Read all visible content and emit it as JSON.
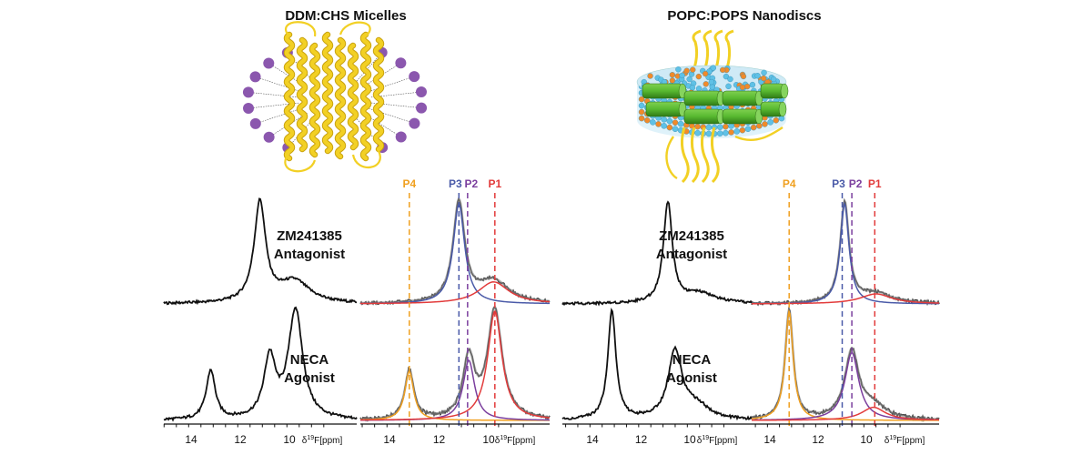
{
  "panels": [
    {
      "title": "DDM:CHS Micelles",
      "conditions": [
        {
          "line1": "ZM241385",
          "line2": "Antagonist"
        },
        {
          "line1": "NECA",
          "line2": "Agonist"
        }
      ],
      "axis": {
        "ticks": [
          "14",
          "12",
          "10"
        ],
        "label_prefix": "δ",
        "label_sup": "19",
        "label_suffix": "F[ppm]"
      },
      "peaks": [
        {
          "name": "P4",
          "ppm": 13.2,
          "color": "#f0a020"
        },
        {
          "name": "P3",
          "ppm": 11.2,
          "color": "#4a5aa8"
        },
        {
          "name": "P2",
          "ppm": 10.85,
          "color": "#7b3f9e"
        },
        {
          "name": "P1",
          "ppm": 9.75,
          "color": "#e23b3b"
        }
      ]
    },
    {
      "title": "POPC:POPS Nanodiscs",
      "conditions": [
        {
          "line1": "ZM241385",
          "line2": "Antagonist"
        },
        {
          "line1": "NECA",
          "line2": "Agonist"
        }
      ],
      "axis": {
        "ticks": [
          "14",
          "12",
          "10"
        ],
        "label_prefix": "δ",
        "label_sup": "19",
        "label_suffix": "F[ppm]"
      },
      "peaks": [
        {
          "name": "P4",
          "ppm": 13.2,
          "color": "#f0a020"
        },
        {
          "name": "P3",
          "ppm": 11.0,
          "color": "#4a5aa8"
        },
        {
          "name": "P2",
          "ppm": 10.6,
          "color": "#7b3f9e"
        },
        {
          "name": "P1",
          "ppm": 9.65,
          "color": "#e23b3b"
        }
      ]
    }
  ],
  "colors": {
    "helix": "#f2d024",
    "helix_dark": "#c9a20f",
    "detergent_head": "#8b57ae",
    "lipid_blue": "#5fc1e6",
    "lipid_orange": "#f08a2a",
    "scaffold": "#58b830",
    "spectrum": "#111111",
    "fit_total": "#888888"
  }
}
